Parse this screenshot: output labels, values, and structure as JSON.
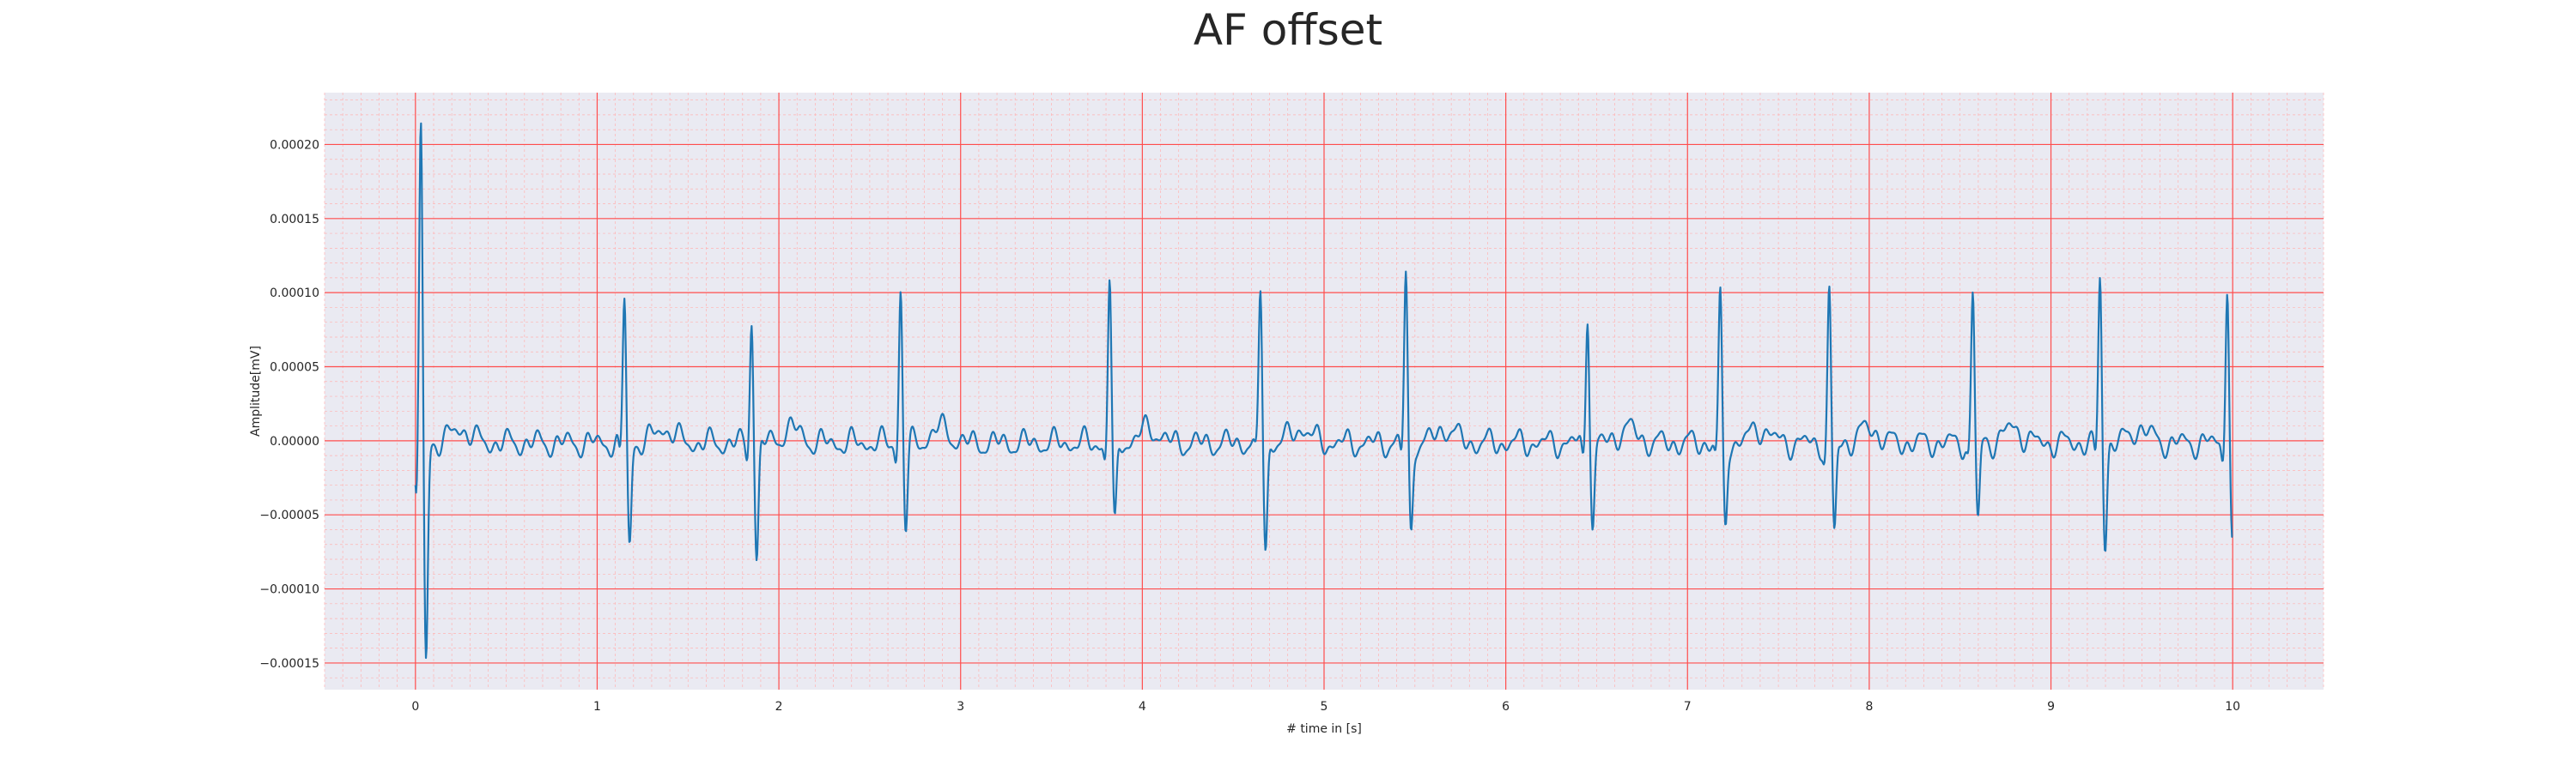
{
  "chart_data": {
    "type": "line",
    "title": "AF offset",
    "xlabel": "# time in [s]",
    "ylabel": "Amplitude[mV]",
    "xlim": [
      -0.5,
      10.5
    ],
    "ylim": [
      -0.000168,
      0.000235
    ],
    "xticks": [
      0,
      1,
      2,
      3,
      4,
      5,
      6,
      7,
      8,
      9,
      10
    ],
    "xtick_labels": [
      "0",
      "1",
      "2",
      "3",
      "4",
      "5",
      "6",
      "7",
      "8",
      "9",
      "10"
    ],
    "yticks": [
      -0.00015,
      -0.0001,
      -5e-05,
      0.0,
      5e-05,
      0.0001,
      0.00015,
      0.0002
    ],
    "ytick_labels": [
      "−0.00015",
      "−0.00010",
      "−0.00005",
      "0.00000",
      "0.00005",
      "0.00010",
      "0.00015",
      "0.00020"
    ],
    "grid": true,
    "grid_major_color": "#ff4d4d",
    "grid_minor_color": "#ffb3b3",
    "background_color": "#eaeaf2",
    "line_color": "#1f77b4",
    "series": [
      {
        "beats": [
          {
            "t": 0.03,
            "r": 0.000218,
            "s": -0.000149,
            "q": -4.5e-05
          },
          {
            "t": 1.15,
            "r": 9.8e-05,
            "s": -7e-05,
            "q": -1.2e-05
          },
          {
            "t": 1.85,
            "r": 8.8e-05,
            "s": -7.9e-05,
            "q": -1e-05
          },
          {
            "t": 2.67,
            "r": 0.000104,
            "s": -5.8e-05,
            "q": -1e-05
          },
          {
            "t": 3.82,
            "r": 0.000112,
            "s": -6e-05,
            "q": -1.2e-05
          },
          {
            "t": 4.65,
            "r": 0.000103,
            "s": -7.2e-05,
            "q": -1e-05
          },
          {
            "t": 5.45,
            "r": 0.000116,
            "s": -6.2e-05,
            "q": -1e-05
          },
          {
            "t": 6.45,
            "r": 9.2e-05,
            "s": -5.8e-05,
            "q": -1.2e-05
          },
          {
            "t": 7.18,
            "r": 0.0001,
            "s": -5.8e-05,
            "q": -1e-05
          },
          {
            "t": 7.78,
            "r": 0.000103,
            "s": -6.4e-05,
            "q": -1.2e-05
          },
          {
            "t": 8.57,
            "r": 0.000103,
            "s": -5.5e-05,
            "q": -1e-05
          },
          {
            "t": 9.27,
            "r": 0.000112,
            "s": -6.8e-05,
            "q": -1.2e-05
          },
          {
            "t": 9.97,
            "r": 0.000111,
            "s": -7.3e-05,
            "q": -1e-05
          }
        ],
        "baseline_amplitude": 1e-05,
        "t_start": 0.0,
        "t_end": 10.0
      }
    ]
  }
}
